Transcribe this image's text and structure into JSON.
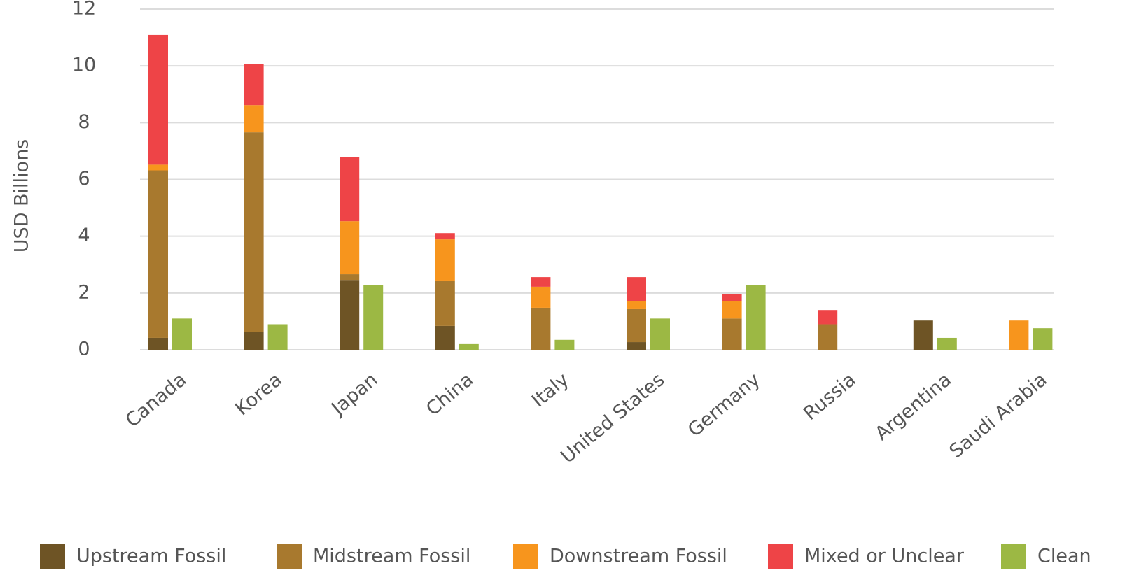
{
  "chart_data": {
    "type": "bar",
    "y_label": "USD Billions",
    "categories": [
      "Canada",
      "Korea",
      "Japan",
      "China",
      "Italy",
      "United States",
      "Germany",
      "Russia",
      "Argentina",
      "Saudi Arabia"
    ],
    "series": [
      {
        "name": "Upstream Fossil",
        "color": "#6e5425",
        "stack": 0,
        "values": [
          0.42,
          0.62,
          2.46,
          0.84,
          0,
          0.27,
          0,
          0,
          1.03,
          0
        ]
      },
      {
        "name": "Midstream Fossil",
        "color": "#a8792e",
        "stack": 0,
        "values": [
          5.9,
          7.04,
          0.2,
          1.6,
          1.48,
          1.16,
          1.1,
          0.9,
          0,
          0
        ]
      },
      {
        "name": "Downstream Fossil",
        "color": "#f7951d",
        "stack": 0,
        "values": [
          0.2,
          0.96,
          1.87,
          1.45,
          0.74,
          0.29,
          0.62,
          0,
          0,
          1.03
        ]
      },
      {
        "name": "Mixed or Unclear",
        "color": "#ee4447",
        "stack": 0,
        "values": [
          4.57,
          1.45,
          2.27,
          0.22,
          0.34,
          0.84,
          0.23,
          0.5,
          0,
          0
        ]
      },
      {
        "name": "Clean",
        "color": "#9cb844",
        "stack": 1,
        "values": [
          1.1,
          0.9,
          2.29,
          0.2,
          0.35,
          1.1,
          2.29,
          0,
          0.42,
          0.76
        ]
      }
    ],
    "ylim": [
      0,
      12
    ],
    "yticks": [
      0,
      2,
      4,
      6,
      8,
      10,
      12
    ],
    "grid": true
  }
}
